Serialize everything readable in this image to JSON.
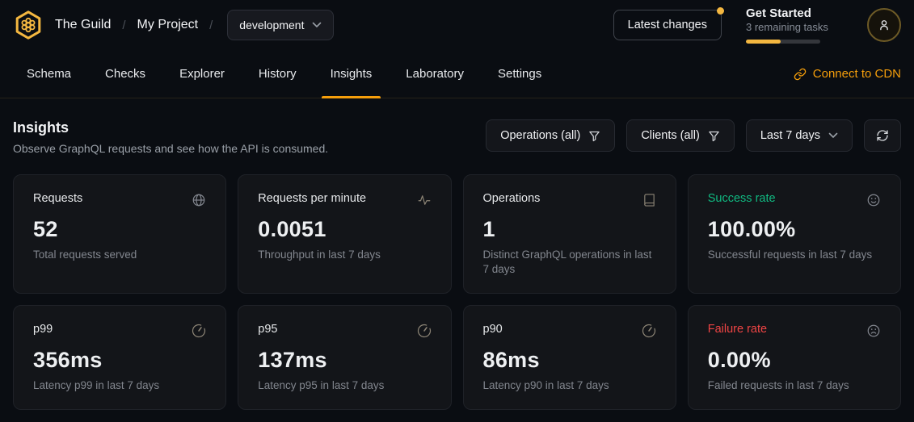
{
  "colors": {
    "accent_amber": "#f4b740",
    "accent_orange": "#f59e0b",
    "success_green": "#10b981",
    "failure_red": "#ef4444",
    "page_bg": "#0a0d12",
    "card_bg": "#131519"
  },
  "header": {
    "org": "The Guild",
    "separator": "/",
    "project": "My Project",
    "target_selector": {
      "value": "development"
    },
    "latest_changes_label": "Latest changes",
    "get_started": {
      "title": "Get Started",
      "subtitle": "3 remaining tasks",
      "progress_percent": 47
    }
  },
  "nav": {
    "tabs": [
      {
        "label": "Schema",
        "active": false
      },
      {
        "label": "Checks",
        "active": false
      },
      {
        "label": "Explorer",
        "active": false
      },
      {
        "label": "History",
        "active": false
      },
      {
        "label": "Insights",
        "active": true
      },
      {
        "label": "Laboratory",
        "active": false
      },
      {
        "label": "Settings",
        "active": false
      }
    ],
    "cdn_link_label": "Connect to CDN"
  },
  "insights": {
    "title": "Insights",
    "description": "Observe GraphQL requests and see how the API is consumed.",
    "filters": {
      "operations": "Operations (all)",
      "clients": "Clients (all)",
      "range": "Last 7 days"
    }
  },
  "cards": [
    {
      "title": "Requests",
      "value": "52",
      "subtitle": "Total requests served",
      "icon": "globe-icon"
    },
    {
      "title": "Requests per minute",
      "value": "0.0051",
      "subtitle": "Throughput in last 7 days",
      "icon": "activity-icon"
    },
    {
      "title": "Operations",
      "value": "1",
      "subtitle": "Distinct GraphQL operations in last 7 days",
      "icon": "book-icon"
    },
    {
      "title": "Success rate",
      "value": "100.00%",
      "subtitle": "Successful requests in last 7 days",
      "icon": "smile-icon",
      "title_color": "#10b981"
    },
    {
      "title": "p99",
      "value": "356ms",
      "subtitle": "Latency p99 in last 7 days",
      "icon": "gauge-icon"
    },
    {
      "title": "p95",
      "value": "137ms",
      "subtitle": "Latency p95 in last 7 days",
      "icon": "gauge-icon"
    },
    {
      "title": "p90",
      "value": "86ms",
      "subtitle": "Latency p90 in last 7 days",
      "icon": "gauge-icon"
    },
    {
      "title": "Failure rate",
      "value": "0.00%",
      "subtitle": "Failed requests in last 7 days",
      "icon": "frown-icon",
      "title_color": "#ef4444"
    }
  ]
}
